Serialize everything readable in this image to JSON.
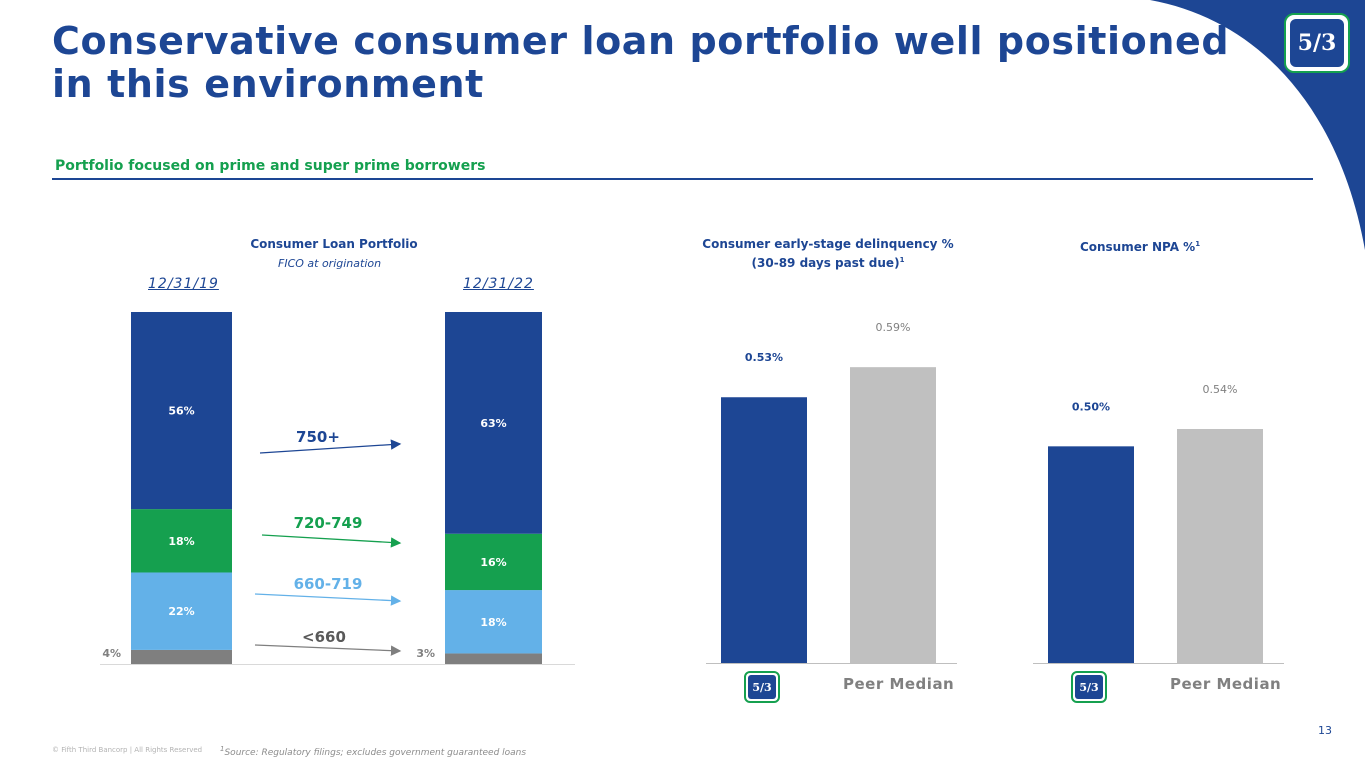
{
  "page": {
    "title": "Conservative consumer loan portfolio well positioned in this environment",
    "subtitle": "Portfolio focused on prime and super prime borrowers",
    "page_number": "13",
    "copyright": "© Fifth Third Bancorp | All Rights Reserved",
    "footnote": "Source: Regulatory filings; excludes government guaranteed loans",
    "footnote_mark": "1",
    "logo_text": "5/3",
    "peer_label": "Peer Median"
  },
  "colors": {
    "navy": "#1d4694",
    "green": "#15a04f",
    "light_blue": "#63b1e8",
    "gray": "#7f7f7f",
    "light_gray": "#c0c0c0"
  },
  "chart_data": [
    {
      "type": "bar",
      "stacked": true,
      "title": "Consumer Loan Portfolio",
      "subtitle": "FICO at origination",
      "categories": [
        "12/31/19",
        "12/31/22"
      ],
      "series": [
        {
          "name": "<660",
          "values": [
            4,
            3
          ],
          "labels": [
            "4%",
            "3%"
          ],
          "color": "#7f7f7f"
        },
        {
          "name": "660-719",
          "values": [
            22,
            18
          ],
          "labels": [
            "22%",
            "18%"
          ],
          "color": "#63b1e8"
        },
        {
          "name": "720-749",
          "values": [
            18,
            16
          ],
          "labels": [
            "18%",
            "16%"
          ],
          "color": "#15a04f"
        },
        {
          "name": "750+",
          "values": [
            56,
            63
          ],
          "labels": [
            "56%",
            "63%"
          ],
          "color": "#1d4694"
        }
      ],
      "unit": "%"
    },
    {
      "type": "bar",
      "title": "Consumer early-stage delinquency %",
      "title_line2": "(30-89 days past due)",
      "footnote_mark": "1",
      "categories": [
        "Fifth Third",
        "Peer Median"
      ],
      "values": [
        0.53,
        0.59
      ],
      "labels": [
        "0.53%",
        "0.59%"
      ],
      "ylim": [
        0,
        0.7
      ]
    },
    {
      "type": "bar",
      "title": "Consumer NPA %",
      "footnote_mark": "1",
      "categories": [
        "Fifth Third",
        "Peer Median"
      ],
      "values": [
        0.5,
        0.54
      ],
      "labels": [
        "0.50%",
        "0.54%"
      ],
      "ylim": [
        0,
        0.81
      ]
    }
  ]
}
